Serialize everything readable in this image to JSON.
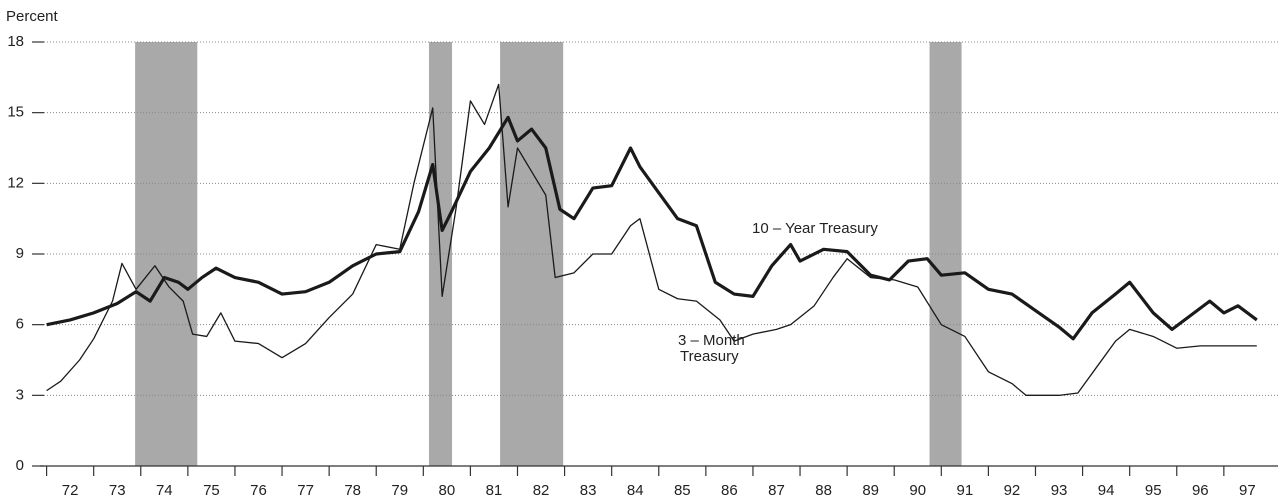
{
  "chart_data": {
    "type": "line",
    "y_label": "Percent",
    "xlim": [
      1971.86,
      1997.98
    ],
    "ylim": [
      0,
      18
    ],
    "yticks": [
      0,
      3,
      6,
      9,
      12,
      15,
      18
    ],
    "grid": true,
    "xtick_marks": [
      1972,
      1973,
      1974,
      1975,
      1976,
      1977,
      1978,
      1979,
      1980,
      1981,
      1982,
      1983,
      1984,
      1985,
      1986,
      1987,
      1988,
      1989,
      1990,
      1991,
      1992,
      1993,
      1994,
      1995,
      1996,
      1997
    ],
    "xticks": [
      {
        "value": 1972.5,
        "label": "72"
      },
      {
        "value": 1973.5,
        "label": "73"
      },
      {
        "value": 1974.5,
        "label": "74"
      },
      {
        "value": 1975.5,
        "label": "75"
      },
      {
        "value": 1976.5,
        "label": "76"
      },
      {
        "value": 1977.5,
        "label": "77"
      },
      {
        "value": 1978.5,
        "label": "78"
      },
      {
        "value": 1979.5,
        "label": "79"
      },
      {
        "value": 1980.5,
        "label": "80"
      },
      {
        "value": 1981.5,
        "label": "81"
      },
      {
        "value": 1982.5,
        "label": "82"
      },
      {
        "value": 1983.5,
        "label": "83"
      },
      {
        "value": 1984.5,
        "label": "84"
      },
      {
        "value": 1985.5,
        "label": "85"
      },
      {
        "value": 1986.5,
        "label": "86"
      },
      {
        "value": 1987.5,
        "label": "87"
      },
      {
        "value": 1988.5,
        "label": "88"
      },
      {
        "value": 1989.5,
        "label": "89"
      },
      {
        "value": 1990.5,
        "label": "90"
      },
      {
        "value": 1991.5,
        "label": "91"
      },
      {
        "value": 1992.5,
        "label": "92"
      },
      {
        "value": 1993.5,
        "label": "93"
      },
      {
        "value": 1994.5,
        "label": "94"
      },
      {
        "value": 1995.5,
        "label": "95"
      },
      {
        "value": 1996.5,
        "label": "96"
      },
      {
        "value": 1997.5,
        "label": "97"
      }
    ],
    "recession_color": "#a9a9a9",
    "recessions": [
      [
        1973.88,
        1975.2
      ],
      [
        1980.12,
        1980.61
      ],
      [
        1981.63,
        1982.97
      ],
      [
        1990.75,
        1991.43
      ]
    ],
    "annotations": [
      "10 – Year  Treasury",
      "3 – Month",
      "Treasury"
    ],
    "series": [
      {
        "color": "#1a1a1a",
        "line_width": 3.2,
        "x": [
          1972.0,
          1972.5,
          1973.0,
          1973.5,
          1973.9,
          1974.2,
          1974.5,
          1974.8,
          1975.0,
          1975.3,
          1975.6,
          1976.0,
          1976.5,
          1977.0,
          1977.5,
          1978.0,
          1978.5,
          1979.0,
          1979.5,
          1979.9,
          1980.2,
          1980.4,
          1980.6,
          1981.0,
          1981.4,
          1981.8,
          1982.0,
          1982.3,
          1982.6,
          1982.9,
          1983.2,
          1983.6,
          1984.0,
          1984.4,
          1984.6,
          1985.0,
          1985.4,
          1985.8,
          1986.2,
          1986.6,
          1987.0,
          1987.4,
          1987.8,
          1988.0,
          1988.5,
          1989.0,
          1989.5,
          1989.9,
          1990.3,
          1990.7,
          1991.0,
          1991.5,
          1992.0,
          1992.5,
          1993.0,
          1993.5,
          1993.8,
          1994.2,
          1994.7,
          1995.0,
          1995.5,
          1995.9,
          1996.3,
          1996.7,
          1997.0,
          1997.3,
          1997.7
        ],
        "values": [
          6.0,
          6.2,
          6.5,
          6.9,
          7.4,
          7.0,
          8.0,
          7.8,
          7.5,
          8.0,
          8.4,
          8.0,
          7.8,
          7.3,
          7.4,
          7.8,
          8.5,
          9.0,
          9.1,
          10.8,
          12.8,
          10.0,
          10.8,
          12.5,
          13.5,
          14.8,
          13.8,
          14.3,
          13.5,
          10.9,
          10.5,
          11.8,
          11.9,
          13.5,
          12.7,
          11.6,
          10.5,
          10.2,
          7.8,
          7.3,
          7.2,
          8.5,
          9.4,
          8.7,
          9.2,
          9.1,
          8.1,
          7.9,
          8.7,
          8.8,
          8.1,
          8.2,
          7.5,
          7.3,
          6.6,
          5.9,
          5.4,
          6.5,
          7.3,
          7.8,
          6.5,
          5.8,
          6.4,
          7.0,
          6.5,
          6.8,
          6.2
        ]
      },
      {
        "color": "#1a1a1a",
        "line_width": 1.3,
        "x": [
          1972.0,
          1972.3,
          1972.7,
          1973.0,
          1973.4,
          1973.6,
          1973.9,
          1974.3,
          1974.6,
          1974.9,
          1975.1,
          1975.4,
          1975.7,
          1976.0,
          1976.5,
          1977.0,
          1977.5,
          1978.0,
          1978.5,
          1979.0,
          1979.5,
          1979.8,
          1980.2,
          1980.4,
          1980.7,
          1981.0,
          1981.3,
          1981.6,
          1981.8,
          1982.0,
          1982.3,
          1982.6,
          1982.8,
          1983.2,
          1983.6,
          1984.0,
          1984.4,
          1984.6,
          1985.0,
          1985.4,
          1985.8,
          1986.3,
          1986.6,
          1987.0,
          1987.5,
          1987.8,
          1988.3,
          1988.7,
          1989.0,
          1989.5,
          1990.0,
          1990.5,
          1991.0,
          1991.5,
          1992.0,
          1992.5,
          1992.8,
          1993.5,
          1993.9,
          1994.3,
          1994.7,
          1995.0,
          1995.5,
          1996.0,
          1996.5,
          1997.0,
          1997.7
        ],
        "values": [
          3.2,
          3.6,
          4.5,
          5.4,
          7.0,
          8.6,
          7.5,
          8.5,
          7.6,
          7.0,
          5.6,
          5.5,
          6.5,
          5.3,
          5.2,
          4.6,
          5.2,
          6.3,
          7.3,
          9.4,
          9.2,
          12.0,
          15.2,
          7.2,
          11.0,
          15.5,
          14.5,
          16.2,
          11.0,
          13.5,
          12.5,
          11.5,
          8.0,
          8.2,
          9.0,
          9.0,
          10.2,
          10.5,
          7.5,
          7.1,
          7.0,
          6.2,
          5.3,
          5.6,
          5.8,
          6.0,
          6.8,
          8.0,
          8.8,
          8.0,
          7.9,
          7.6,
          6.0,
          5.5,
          4.0,
          3.5,
          3.0,
          3.0,
          3.1,
          4.2,
          5.3,
          5.8,
          5.5,
          5.0,
          5.1,
          5.1,
          5.1
        ]
      }
    ]
  }
}
